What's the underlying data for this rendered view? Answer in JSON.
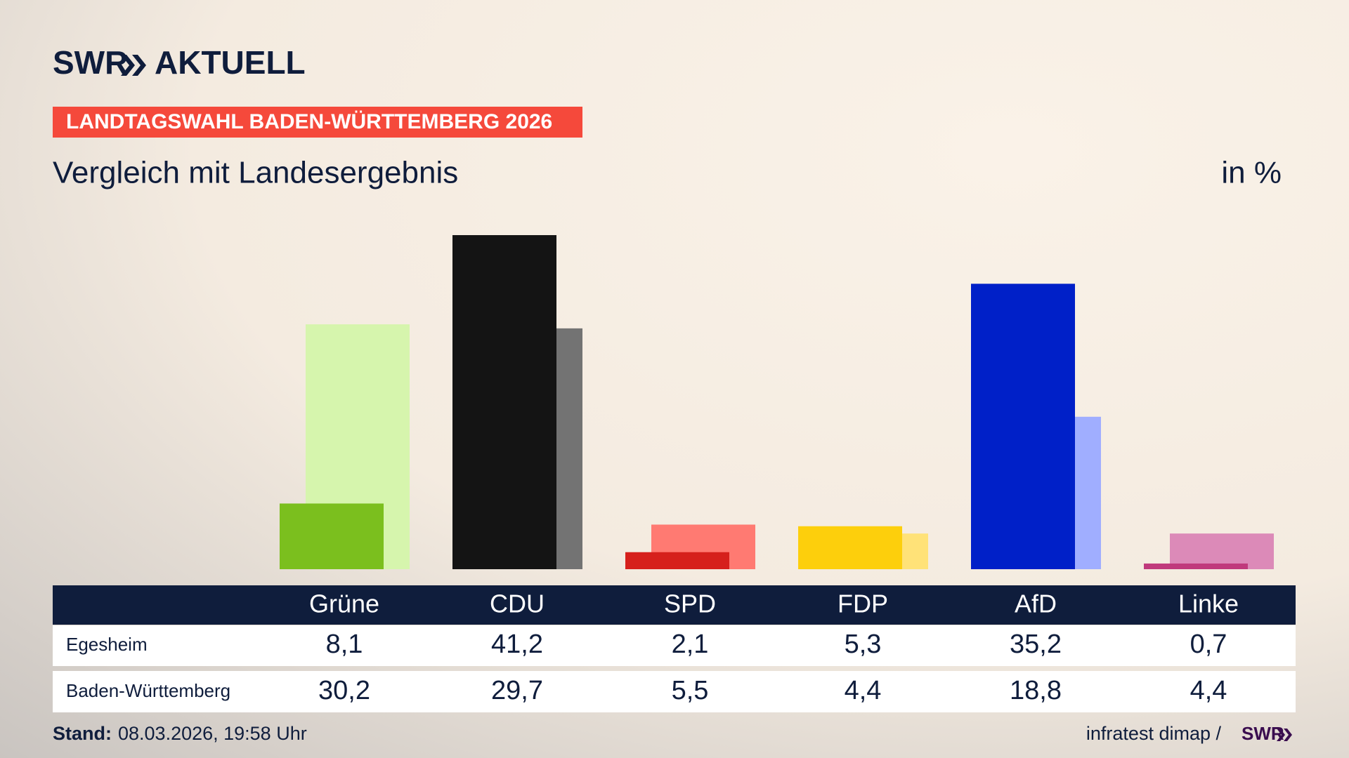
{
  "header": {
    "brand": "SWR",
    "brand_suffix": "AKTUELL",
    "banner": "LANDTAGSWAHL BADEN-WÜRTTEMBERG 2026"
  },
  "chart_data": {
    "type": "bar",
    "title": "Vergleich mit Landesergebnis",
    "unit": "in %",
    "categories": [
      "Grüne",
      "CDU",
      "SPD",
      "FDP",
      "AfD",
      "Linke"
    ],
    "series": [
      {
        "name": "Egesheim",
        "colors": [
          "#7bbf1e",
          "#141414",
          "#d6201c",
          "#fdcf0c",
          "#0020c8",
          "#c03a7c"
        ],
        "values": [
          8.1,
          41.2,
          2.1,
          5.3,
          35.2,
          0.7
        ],
        "value_labels": [
          "8,1",
          "41,2",
          "2,1",
          "5,3",
          "35,2",
          "0,7"
        ]
      },
      {
        "name": "Baden-Württemberg",
        "colors": [
          "#d6f5ad",
          "#737373",
          "#ff7a72",
          "#ffe278",
          "#a0aeff",
          "#dc8ab8"
        ],
        "values": [
          30.2,
          29.7,
          5.5,
          4.4,
          18.8,
          4.4
        ],
        "value_labels": [
          "30,2",
          "29,7",
          "5,5",
          "4,4",
          "18,8",
          "4,4"
        ]
      }
    ]
  },
  "footer": {
    "stand_label": "Stand:",
    "stand": "08.03.2026, 19:58 Uhr",
    "source": "infratest dimap /",
    "brand": "SWR"
  }
}
